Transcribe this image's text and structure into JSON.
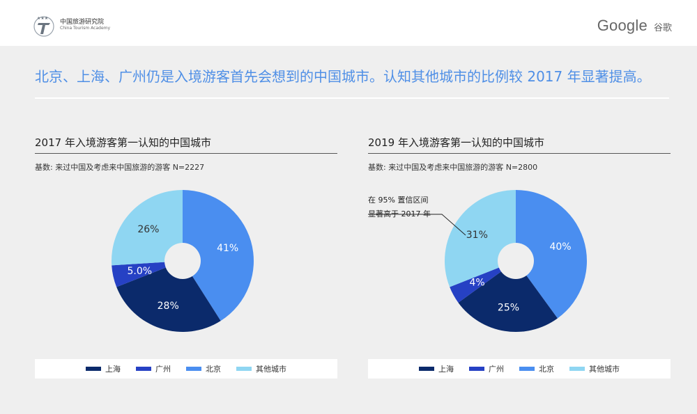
{
  "header": {
    "org_cn": "中国旅游研究院",
    "org_en": "China Tourism Academy",
    "google_word": "Google",
    "google_cn": "谷歌"
  },
  "headline": "北京、上海、广州仍是入境游客首先会想到的中国城市。认知其他城市的比例较 2017 年显著提高。",
  "legend_labels": [
    "上海",
    "广州",
    "北京",
    "其他城市"
  ],
  "colors": {
    "上海": "#0b2a6b",
    "广州": "#2641c4",
    "北京": "#4a8ef0",
    "其他城市": "#8fd6f2",
    "headline": "#4f8fe6"
  },
  "chart_data": [
    {
      "type": "pie",
      "title": "2017 年入境游客第一认知的中国城市",
      "subtitle": "基数: 来过中国及考虑来中国旅游的游客 N=2227",
      "categories": [
        "北京",
        "上海",
        "广州",
        "其他城市"
      ],
      "values": [
        41,
        28,
        5.0,
        26
      ],
      "labels": [
        "41%",
        "28%",
        "5.0%",
        "26%"
      ],
      "donut": true
    },
    {
      "type": "pie",
      "title": "2019 年入境游客第一认知的中国城市",
      "subtitle": "基数: 来过中国及考虑来中国旅游的游客 N=2800",
      "categories": [
        "北京",
        "上海",
        "广州",
        "其他城市"
      ],
      "values": [
        40,
        25,
        4,
        31
      ],
      "labels": [
        "40%",
        "25%",
        "4%",
        "31%"
      ],
      "donut": true,
      "annotation": {
        "line1": "在 95% 置信区间",
        "line2": "显著高于 2017 年",
        "target": "其他城市"
      }
    }
  ]
}
